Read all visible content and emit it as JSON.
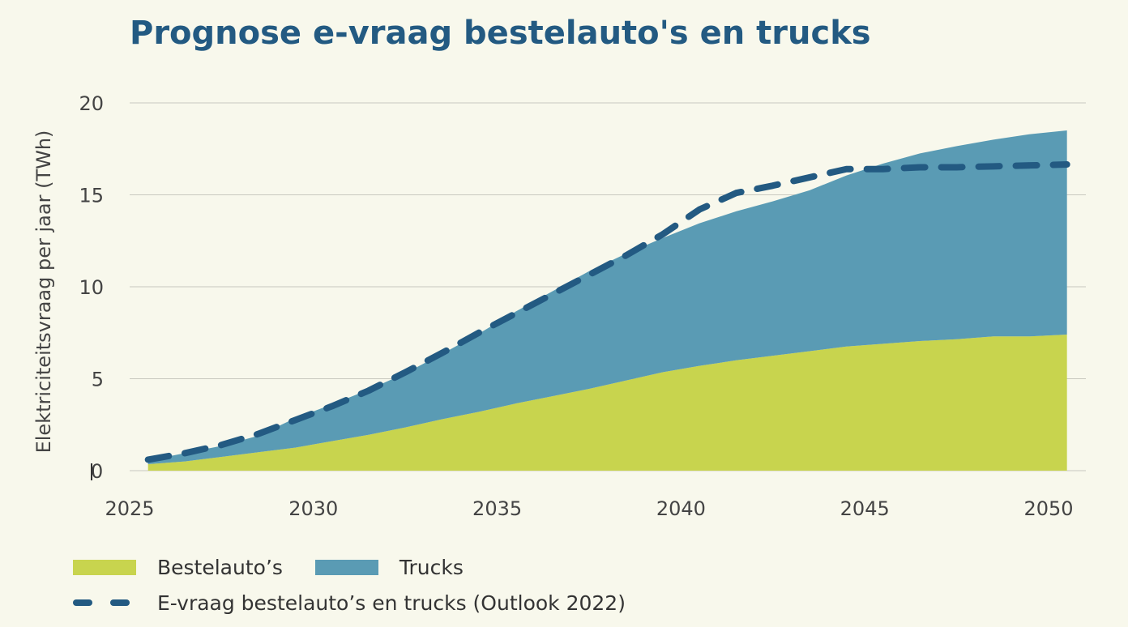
{
  "chart_data": {
    "type": "area",
    "title": "Prognose e-vraag bestelauto's en trucks",
    "ylabel": "Elektriciteitsvraag per jaar (TWh)",
    "xlabel": "",
    "xlim": [
      2025,
      2050.5
    ],
    "ylim": [
      0,
      20
    ],
    "x_ticks": [
      2025,
      2030,
      2035,
      2040,
      2045,
      2050
    ],
    "y_ticks": [
      0,
      5,
      10,
      15,
      20
    ],
    "grid": "horizontal",
    "legend_position": "bottom",
    "x": [
      2025.5,
      2026.5,
      2027.5,
      2028.5,
      2029.5,
      2030.5,
      2031.5,
      2032.5,
      2033.5,
      2034.5,
      2035.5,
      2036.5,
      2037.5,
      2038.5,
      2039.5,
      2040.5,
      2041.5,
      2042.5,
      2043.5,
      2044.5,
      2045.5,
      2046.5,
      2047.5,
      2048.5,
      2049.5,
      2050.5
    ],
    "series": [
      {
        "name": "Bestelauto’s",
        "type": "area-stacked",
        "color": "#c8d44e",
        "values": [
          0.35,
          0.5,
          0.75,
          1.0,
          1.25,
          1.6,
          1.95,
          2.35,
          2.8,
          3.2,
          3.65,
          4.05,
          4.45,
          4.9,
          5.35,
          5.7,
          6.0,
          6.25,
          6.5,
          6.75,
          6.9,
          7.05,
          7.15,
          7.3,
          7.3,
          7.4
        ]
      },
      {
        "name": "Trucks",
        "type": "area-stacked",
        "color": "#5a9bb4",
        "values": [
          0.2,
          0.45,
          0.6,
          0.9,
          1.6,
          2.0,
          2.45,
          2.95,
          3.55,
          4.25,
          5.0,
          5.7,
          6.4,
          6.9,
          7.3,
          7.75,
          8.1,
          8.4,
          8.75,
          9.3,
          9.8,
          10.2,
          10.5,
          10.7,
          11.0,
          11.1
        ]
      },
      {
        "name": "E-vraag bestelauto’s en trucks (Outlook 2022)",
        "type": "line-dashed",
        "color": "#235a82",
        "x": [
          2025.5,
          2026.5,
          2027.5,
          2028.5,
          2029.5,
          2030.5,
          2031.5,
          2032.5,
          2033.5,
          2034.5,
          2035.5,
          2036.5,
          2037.5,
          2038.5,
          2039.5,
          2040.5,
          2041.5,
          2042.5,
          2043.5,
          2044.5,
          2045.5,
          2046.5,
          2047.5,
          2048.5,
          2049.5,
          2050.5
        ],
        "values": [
          0.6,
          0.95,
          1.4,
          2.0,
          2.75,
          3.5,
          4.35,
          5.35,
          6.4,
          7.5,
          8.55,
          9.6,
          10.65,
          11.7,
          12.85,
          14.2,
          15.1,
          15.5,
          15.95,
          16.4,
          16.4,
          16.5,
          16.5,
          16.55,
          16.6,
          16.65
        ]
      }
    ]
  }
}
